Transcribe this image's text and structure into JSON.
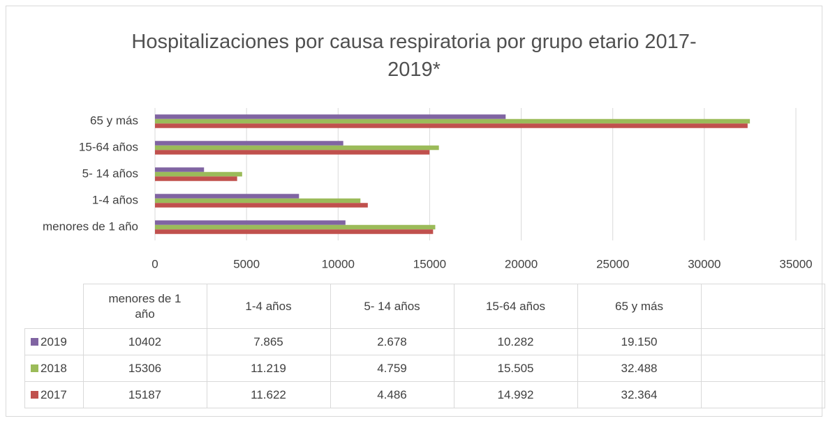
{
  "chart_data": {
    "type": "bar",
    "orientation": "horizontal",
    "title": "Hospitalizaciones por causa respiratoria por grupo etario 2017-2019*",
    "categories": [
      "menores de 1 año",
      "1-4 años",
      "5- 14 años",
      "15-64 años",
      "65 y más"
    ],
    "series": [
      {
        "name": "2019",
        "color": "#8064a2",
        "values": [
          10402,
          7865,
          2678,
          10282,
          19150
        ],
        "value_labels": [
          "10402",
          "7.865",
          "2.678",
          "10.282",
          "19.150"
        ]
      },
      {
        "name": "2018",
        "color": "#9bbb59",
        "values": [
          15306,
          11219,
          4759,
          15505,
          32488
        ],
        "value_labels": [
          "15306",
          "11.219",
          "4.759",
          "15.505",
          "32.488"
        ]
      },
      {
        "name": "2017",
        "color": "#c0504d",
        "values": [
          15187,
          11622,
          4486,
          14992,
          32364
        ],
        "value_labels": [
          "15187",
          "11.622",
          "4.486",
          "14.992",
          "32.364"
        ]
      }
    ],
    "xlim": [
      0,
      35000
    ],
    "xticks": [
      0,
      5000,
      10000,
      15000,
      20000,
      25000,
      30000,
      35000
    ],
    "grid": true,
    "data_table": true
  }
}
